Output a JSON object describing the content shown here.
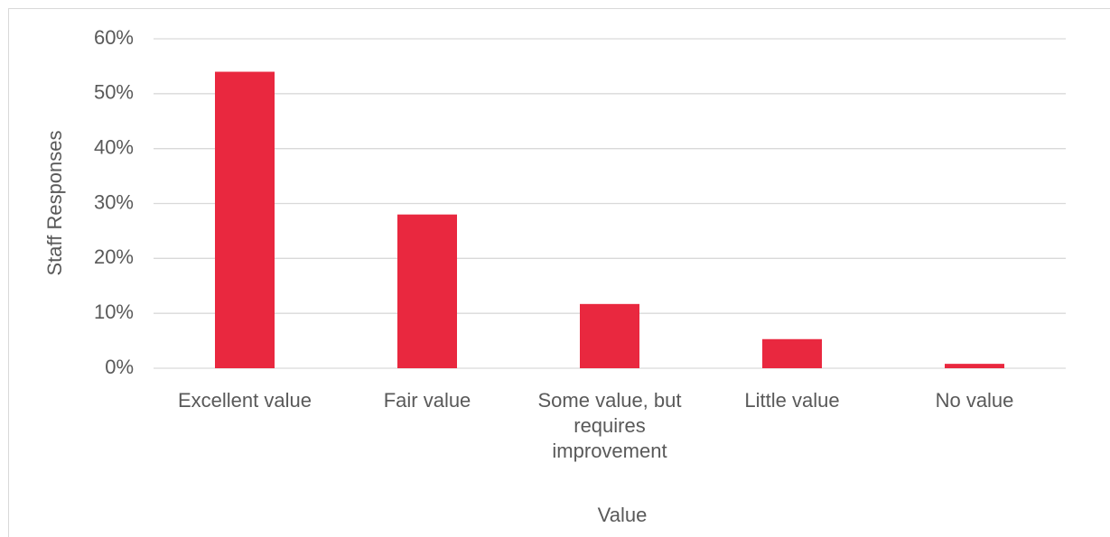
{
  "chart_data": {
    "type": "bar",
    "categories": [
      "Excellent value",
      "Fair value",
      "Some value, but requires improvement",
      "Little value",
      "No value"
    ],
    "values": [
      54,
      28,
      11.7,
      5.3,
      0.8
    ],
    "color": "#e9283f",
    "x_label": "Value",
    "y_label": "Staff Responses",
    "ylim": [
      0,
      60
    ],
    "yticks": [
      {
        "value": 0,
        "label": "0%"
      },
      {
        "value": 10,
        "label": "10%"
      },
      {
        "value": 20,
        "label": "20%"
      },
      {
        "value": 30,
        "label": "30%"
      },
      {
        "value": 40,
        "label": "40%"
      },
      {
        "value": 50,
        "label": "50%"
      },
      {
        "value": 60,
        "label": "60%"
      }
    ],
    "grid": true
  }
}
